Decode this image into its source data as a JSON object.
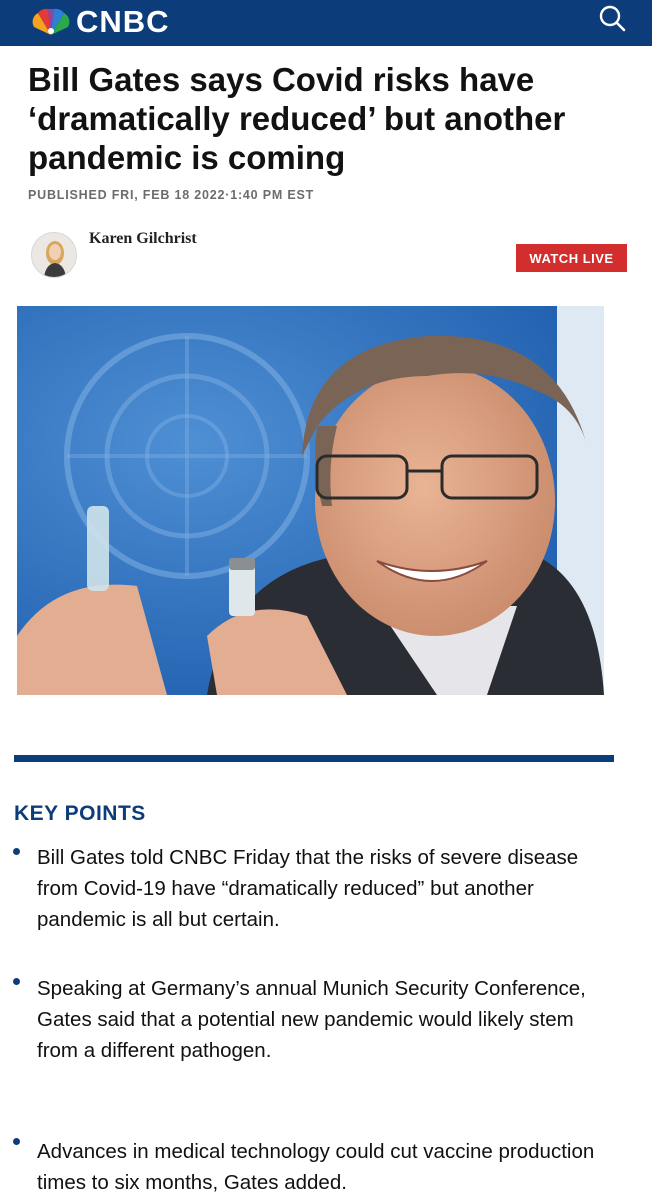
{
  "header": {
    "logo_text": "CNBC",
    "brand_color": "#0c3d7a",
    "icons": [
      "peacock-logo-icon",
      "search-icon"
    ]
  },
  "article": {
    "headline": "Bill Gates says Covid risks have ‘dramatically reduced’ but another pandemic is coming",
    "published": "PUBLISHED FRI, FEB 18 2022·1:40 PM EST",
    "author": "Karen Gilchrist",
    "watch_live": "WATCH LIVE",
    "watch_live_color": "#d22e2e"
  },
  "key_points": {
    "title": "KEY POINTS",
    "items": [
      "Bill Gates told CNBC Friday that the risks of severe disease from Covid-19 have “dramatically reduced” but another pandemic is all but certain.",
      "Speaking at Germany’s annual Munich Security Conference, Gates said that a potential new pandemic would likely stem from a different pathogen.",
      "Advances in medical technology could cut vaccine production times to six months, Gates added."
    ]
  }
}
